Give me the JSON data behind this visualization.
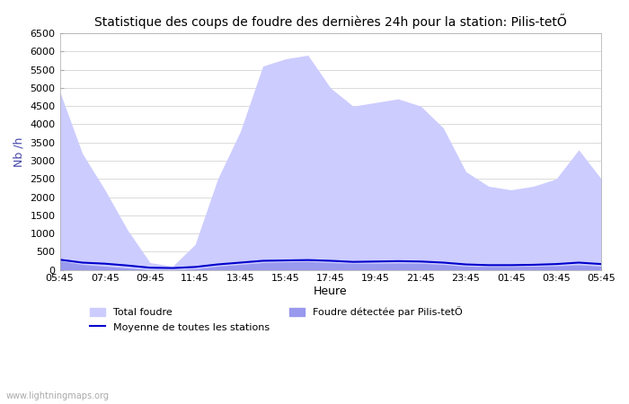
{
  "title": "Statistique des coups de foudre des dernières 24h pour la station: Pilis-tetŐ",
  "ylabel": "Nb /h",
  "xlabel": "Heure",
  "ylim": [
    0,
    6500
  ],
  "yticks": [
    0,
    500,
    1000,
    1500,
    2000,
    2500,
    3000,
    3500,
    4000,
    4500,
    5000,
    5500,
    6000,
    6500
  ],
  "xtick_labels": [
    "05:45",
    "07:45",
    "09:45",
    "11:45",
    "13:45",
    "15:45",
    "17:45",
    "19:45",
    "21:45",
    "23:45",
    "01:45",
    "03:45",
    "05:45"
  ],
  "legend_labels": [
    "Total foudre",
    "Moyenne de toutes les stations",
    "Foudre détectée par Pilis-tetŐ"
  ],
  "fill_color_total": "#ccccff",
  "fill_color_station": "#9999ee",
  "line_color_avg": "#0000cc",
  "bg_color": "#ffffff",
  "watermark": "www.lightningmaps.org",
  "total_foudre": [
    4900,
    3200,
    2200,
    1100,
    200,
    100,
    700,
    2500,
    3800,
    5600,
    5800,
    5900,
    5000,
    4500,
    4600,
    4700,
    4500,
    3900,
    2700,
    2300,
    2200,
    2300,
    2500,
    3300,
    2500
  ],
  "station_foudre": [
    250,
    150,
    100,
    50,
    10,
    5,
    30,
    100,
    150,
    200,
    220,
    230,
    200,
    180,
    180,
    190,
    180,
    150,
    100,
    90,
    90,
    100,
    110,
    140,
    100
  ],
  "avg_foudre": [
    280,
    200,
    170,
    120,
    60,
    50,
    80,
    150,
    200,
    250,
    260,
    270,
    250,
    220,
    230,
    240,
    230,
    200,
    150,
    130,
    130,
    140,
    160,
    200,
    160
  ]
}
